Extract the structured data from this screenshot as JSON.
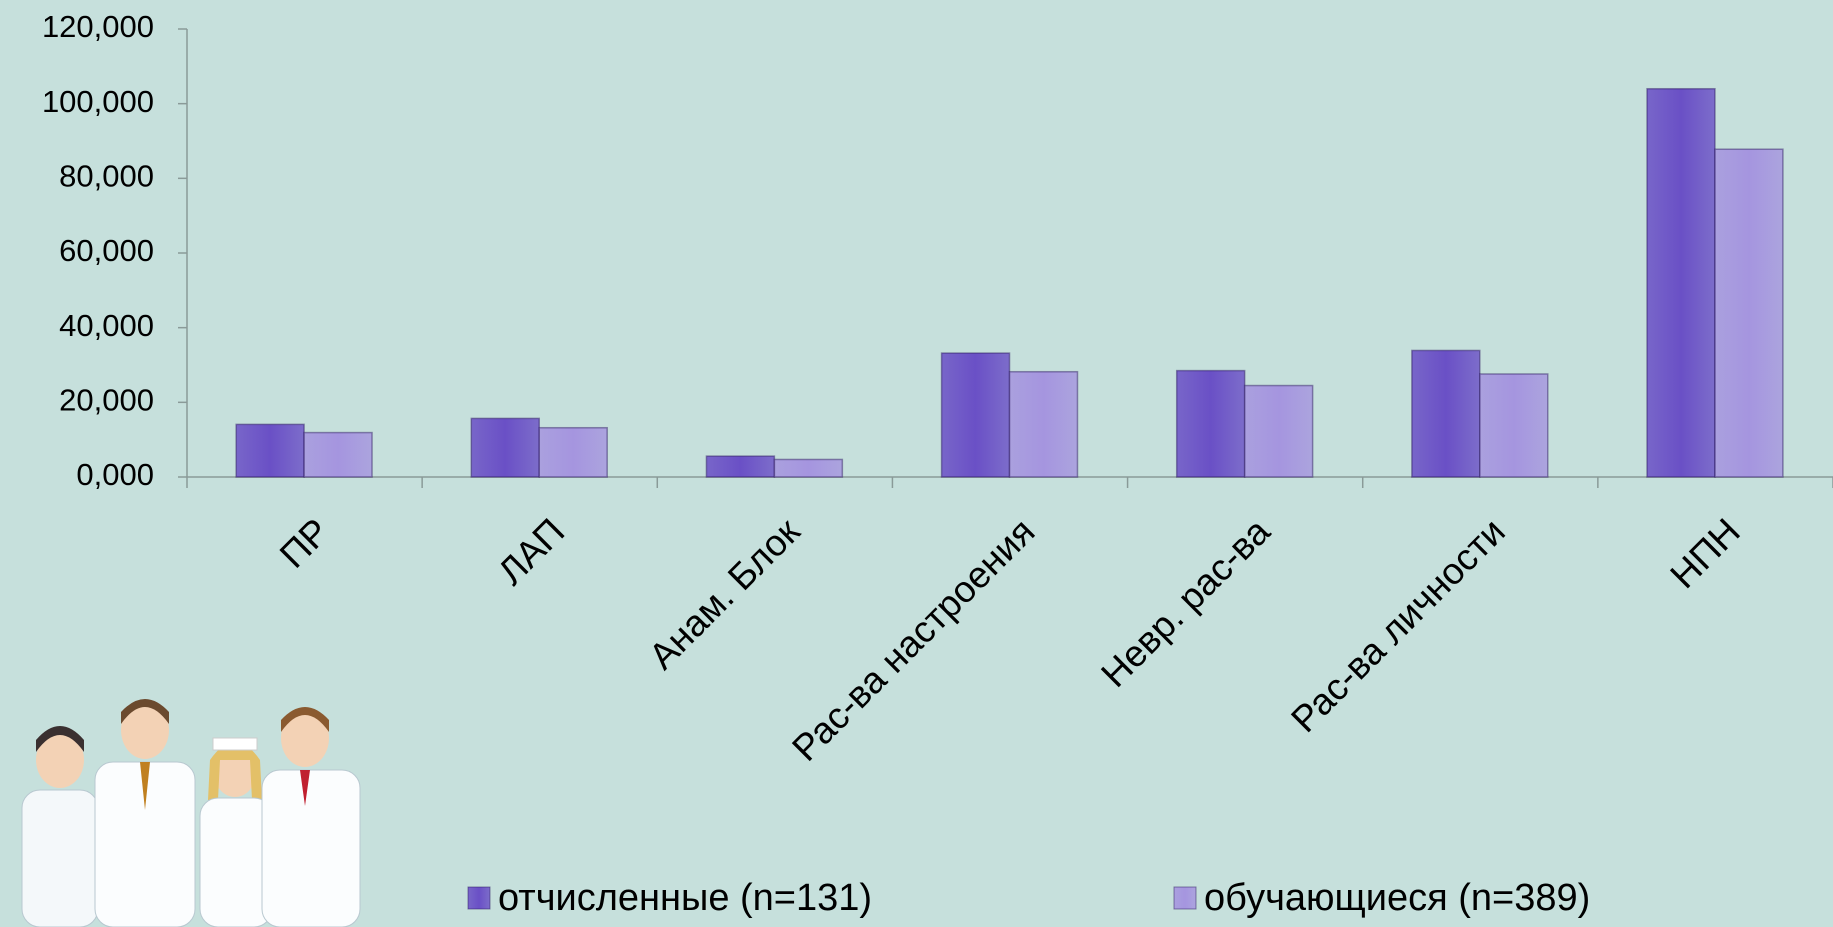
{
  "chart_data": {
    "type": "bar",
    "categories": [
      "ПР",
      "ЛАП",
      "Анам. Блок",
      "Рас-ва настроения",
      "Невр. рас-ва",
      "Рас-ва личности",
      "НПН"
    ],
    "series": [
      {
        "name": "отчисленные (n=131)",
        "color": "#6a50c6",
        "values": [
          14.1,
          15.7,
          5.6,
          33.2,
          28.5,
          33.9,
          104
        ]
      },
      {
        "name": "обучающиеся (n=389)",
        "color": "#a595df",
        "values": [
          11.9,
          13.2,
          4.7,
          28.2,
          24.5,
          27.6,
          87.8
        ]
      }
    ],
    "ylim": [
      0,
      120
    ],
    "yticks": [
      {
        "value": 0,
        "label": "0,000"
      },
      {
        "value": 20,
        "label": "20,000"
      },
      {
        "value": 40,
        "label": "40,000"
      },
      {
        "value": 60,
        "label": "60,000"
      },
      {
        "value": 80,
        "label": "80,000"
      },
      {
        "value": 100,
        "label": "100,000"
      },
      {
        "value": 120,
        "label": "120,000"
      }
    ],
    "legend": "bottom"
  }
}
